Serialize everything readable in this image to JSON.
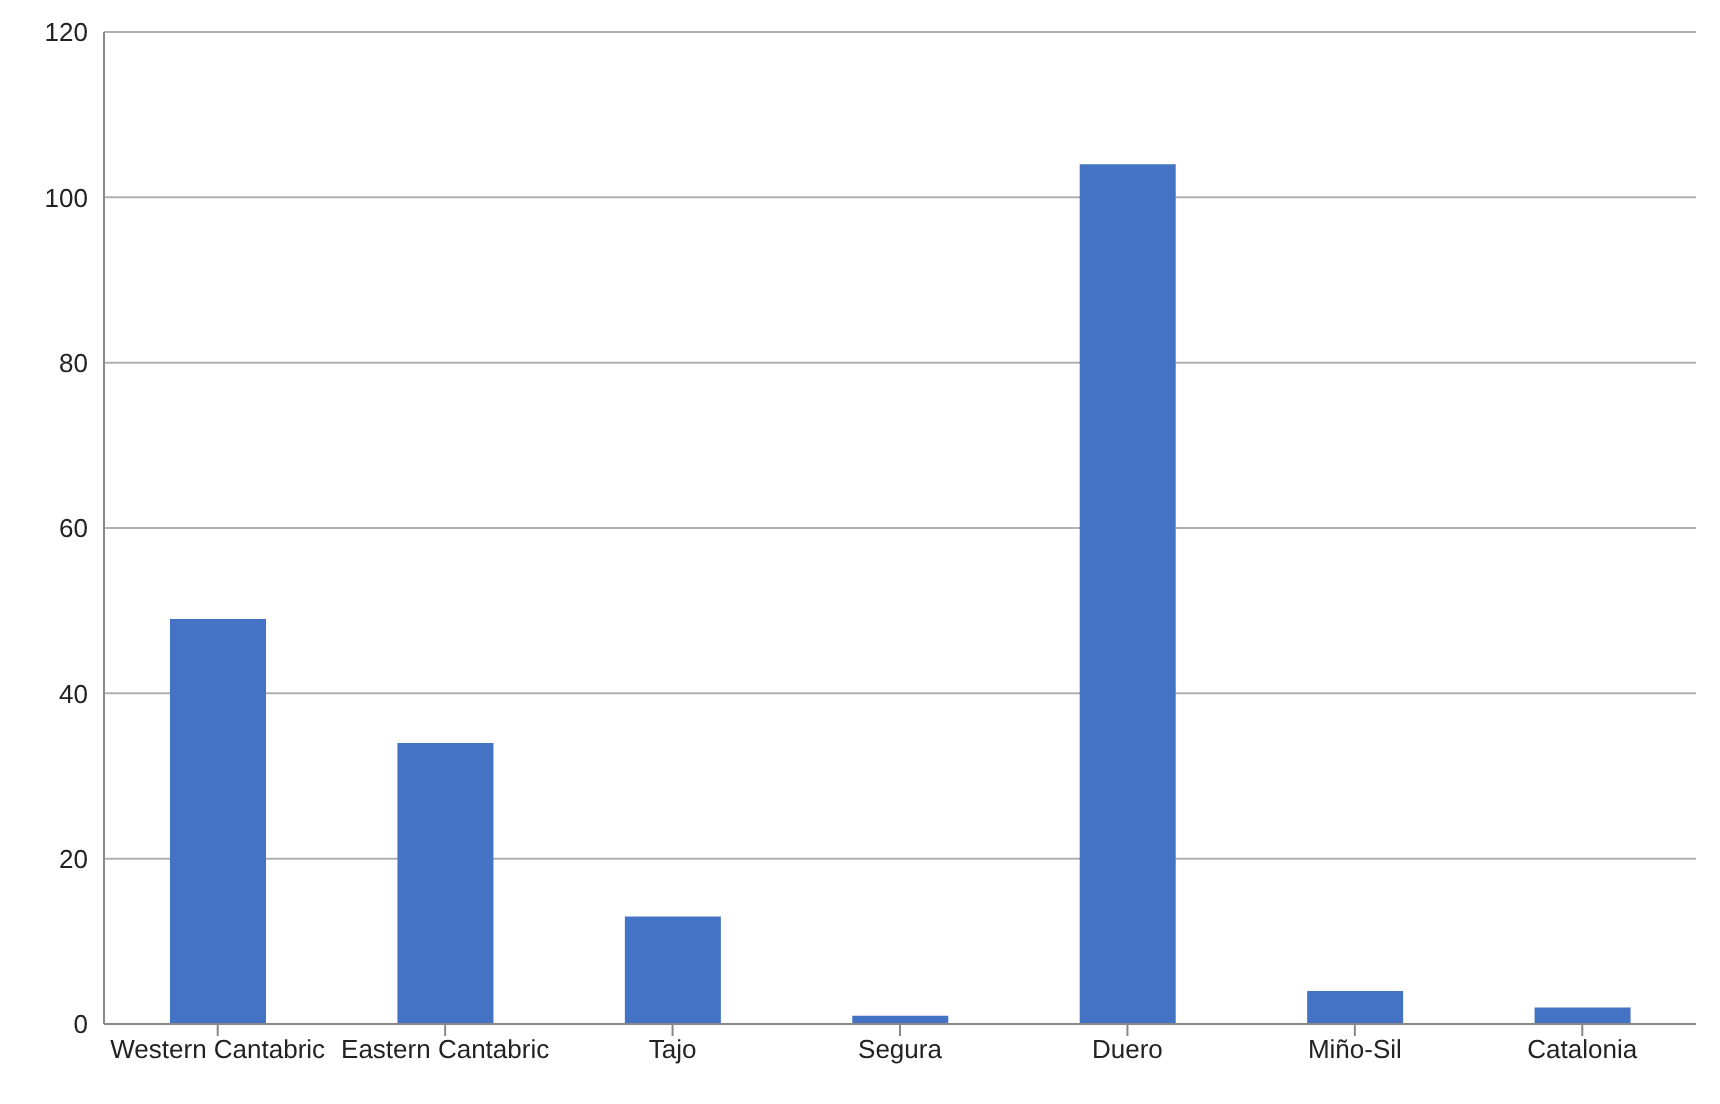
{
  "chart_data": {
    "type": "bar",
    "categories": [
      "Western Cantabric",
      "Eastern Cantabric",
      "Tajo",
      "Segura",
      "Duero",
      "Miño-Sil",
      "Catalonia"
    ],
    "values": [
      49,
      34,
      13,
      1,
      104,
      4,
      2
    ],
    "color": "#4472c4",
    "ylim": [
      0,
      120
    ],
    "yticks": [
      0,
      20,
      40,
      60,
      80,
      100,
      120
    ],
    "grid": "y"
  }
}
